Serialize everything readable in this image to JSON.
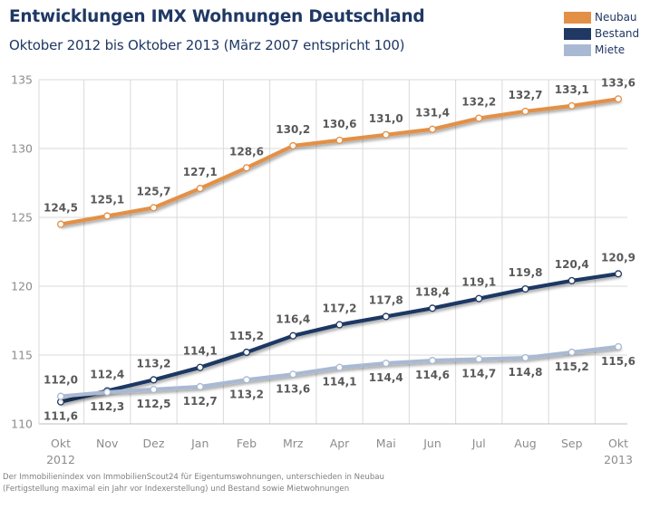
{
  "header": {
    "title": "Entwicklungen IMX Wohnungen Deutschland",
    "subtitle": "Oktober 2012 bis Oktober 2013 (März 2007 entspricht 100)"
  },
  "legend": [
    {
      "label": "Neubau",
      "color": "#e39046"
    },
    {
      "label": "Bestand",
      "color": "#1f3864"
    },
    {
      "label": "Miete",
      "color": "#a9b9d3"
    }
  ],
  "footnote": [
    "Der Immobilienindex von ImmobilienScout24 für Eigentumswohnungen, unterschieden in Neubau",
    "(Fertigstellung maximal ein Jahr vor Indexerstellung) und Bestand sowie Mietwohnungen"
  ],
  "chart_data": {
    "type": "line",
    "title": "Entwicklungen IMX Wohnungen Deutschland",
    "subtitle": "Oktober 2012 bis Oktober 2013 (März 2007 entspricht 100)",
    "categories": [
      "Okt",
      "Nov",
      "Dez",
      "Jan",
      "Feb",
      "Mrz",
      "Apr",
      "Mai",
      "Jun",
      "Jul",
      "Aug",
      "Sep",
      "Okt"
    ],
    "category_sublabels": [
      "2012",
      "",
      "",
      "",
      "",
      "",
      "",
      "",
      "",
      "",
      "",
      "",
      "2013"
    ],
    "series": [
      {
        "name": "Neubau",
        "color": "#e39046",
        "values": [
          124.5,
          125.1,
          125.7,
          127.1,
          128.6,
          130.2,
          130.6,
          131.0,
          131.4,
          132.2,
          132.7,
          133.1,
          133.6
        ],
        "labels": [
          "124,5",
          "125,1",
          "125,7",
          "127,1",
          "128,6",
          "130,2",
          "130,6",
          "131,0",
          "131,4",
          "132,2",
          "132,7",
          "133,1",
          "133,6"
        ]
      },
      {
        "name": "Bestand",
        "color": "#1f3864",
        "values": [
          111.6,
          112.4,
          113.2,
          114.1,
          115.2,
          116.4,
          117.2,
          117.8,
          118.4,
          119.1,
          119.8,
          120.4,
          120.9
        ],
        "labels": [
          "111,6",
          "112,4",
          "113,2",
          "114,1",
          "115,2",
          "116,4",
          "117,2",
          "117,8",
          "118,4",
          "119,1",
          "119,8",
          "120,4",
          "120,9"
        ]
      },
      {
        "name": "Miete",
        "color": "#a9b9d3",
        "values": [
          112.0,
          112.3,
          112.5,
          112.7,
          113.2,
          113.6,
          114.1,
          114.4,
          114.6,
          114.7,
          114.8,
          115.2,
          115.6
        ],
        "labels": [
          "112,0",
          "112,3",
          "112,5",
          "112,7",
          "113,2",
          "113,6",
          "114,1",
          "114,4",
          "114,6",
          "114,7",
          "114,8",
          "115,2",
          "115,6"
        ]
      }
    ],
    "y_ticks": [
      110,
      115,
      120,
      125,
      130,
      135
    ],
    "ylim": [
      110,
      135
    ],
    "grid": {
      "horizontal": true,
      "vertical": true
    },
    "legend_position": "top-right"
  }
}
